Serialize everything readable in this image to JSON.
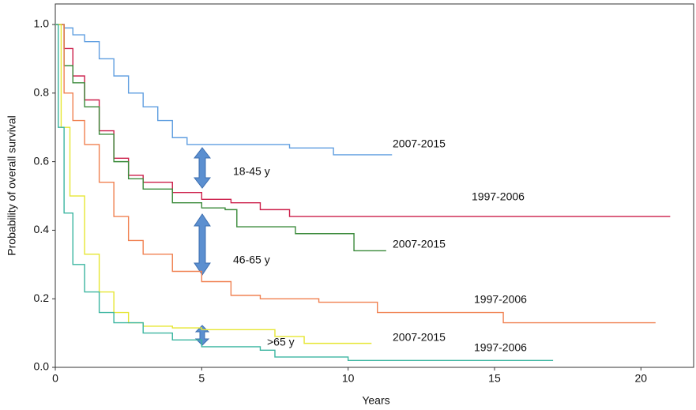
{
  "chart_data": {
    "type": "km",
    "xlabel": "Years",
    "ylabel": "Probability of overall survival",
    "xlim": [
      0,
      21.8
    ],
    "ylim": [
      0,
      1.06
    ],
    "xticks": [
      0,
      5,
      10,
      15,
      20
    ],
    "yticks": [
      {
        "value": 0,
        "label": "0.0"
      },
      0.2,
      0.4,
      0.6,
      0.8,
      {
        "value": 1,
        "label": "1.0"
      }
    ],
    "annotations": [
      "18-45 y",
      "46-65 y",
      ">65 y"
    ],
    "series": [
      {
        "name": "2007-2015",
        "color": "#5f9ee0",
        "x": [
          0,
          0.3,
          0.6,
          1,
          1.5,
          2,
          2.5,
          3,
          3.5,
          4,
          4.5,
          6,
          8,
          9.5,
          11.5
        ],
        "values": [
          1.0,
          0.99,
          0.97,
          0.95,
          0.9,
          0.85,
          0.8,
          0.76,
          0.72,
          0.67,
          0.65,
          0.65,
          0.64,
          0.62,
          0.62
        ]
      },
      {
        "name": "1997-2006",
        "color": "#cc1f4a",
        "x": [
          0,
          0.3,
          0.6,
          1,
          1.5,
          2,
          2.5,
          3,
          4,
          5,
          6,
          7,
          8,
          15,
          21
        ],
        "values": [
          1.0,
          0.93,
          0.85,
          0.78,
          0.69,
          0.61,
          0.56,
          0.54,
          0.51,
          0.49,
          0.48,
          0.46,
          0.44,
          0.44,
          0.44
        ]
      },
      {
        "name": "2007-2015",
        "color": "#3a8a3a",
        "x": [
          0,
          0.3,
          0.6,
          1,
          1.5,
          2,
          2.5,
          3,
          4,
          5,
          5.8,
          6.2,
          8.2,
          10.2,
          11.3
        ],
        "values": [
          1.0,
          0.88,
          0.83,
          0.76,
          0.68,
          0.6,
          0.55,
          0.52,
          0.48,
          0.465,
          0.46,
          0.41,
          0.39,
          0.34,
          0.34
        ]
      },
      {
        "name": "1997-2006",
        "color": "#f08050",
        "x": [
          0,
          0.3,
          0.6,
          1,
          1.5,
          2,
          2.5,
          3,
          4,
          5,
          6,
          7,
          9,
          11,
          15.3,
          20.5
        ],
        "values": [
          1.0,
          0.8,
          0.72,
          0.65,
          0.54,
          0.44,
          0.37,
          0.33,
          0.28,
          0.25,
          0.21,
          0.2,
          0.19,
          0.16,
          0.13,
          0.13
        ]
      },
      {
        "name": "2007-2015",
        "color": "#e6e632",
        "x": [
          0,
          0.2,
          0.5,
          1,
          1.5,
          2,
          2.5,
          3,
          4,
          5,
          7.5,
          8.5,
          10.8
        ],
        "values": [
          1.0,
          0.7,
          0.5,
          0.33,
          0.22,
          0.16,
          0.13,
          0.12,
          0.115,
          0.11,
          0.09,
          0.07,
          0.07
        ]
      },
      {
        "name": "1997-2006",
        "color": "#3ab5a0",
        "x": [
          0,
          0.1,
          0.3,
          0.6,
          1,
          1.5,
          2,
          3,
          4,
          5,
          7,
          7.5,
          10,
          17
        ],
        "values": [
          1.0,
          0.7,
          0.45,
          0.3,
          0.22,
          0.16,
          0.13,
          0.1,
          0.08,
          0.06,
          0.05,
          0.03,
          0.02,
          0.02
        ]
      }
    ]
  }
}
